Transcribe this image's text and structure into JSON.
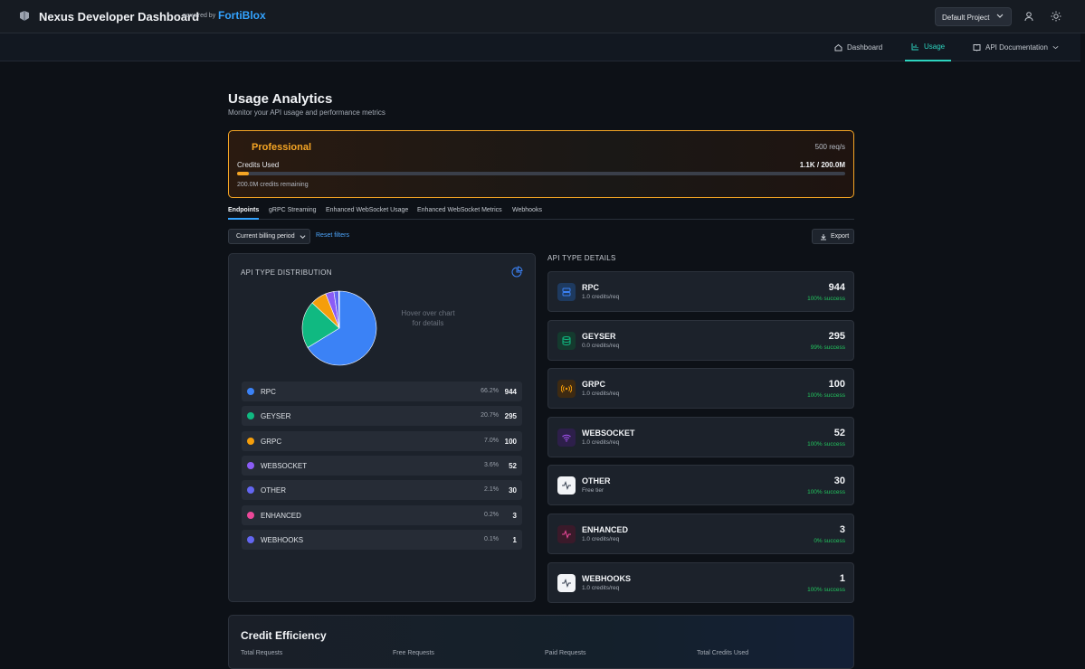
{
  "header": {
    "app_title": "Nexus Developer Dashboard",
    "powered_by": "powered by",
    "brand": "FortiBlox",
    "project": "Default Project"
  },
  "nav": {
    "dashboard": "Dashboard",
    "usage": "Usage",
    "api_docs": "API Documentation"
  },
  "page": {
    "title": "Usage Analytics",
    "subtitle": "Monitor your API usage and performance metrics"
  },
  "plan": {
    "name": "Professional",
    "rate": "500 req/s",
    "credits_label": "Credits Used",
    "credits_value": "1.1K / 200.0M",
    "remaining": "200.0M credits remaining",
    "used_fraction": 0.02
  },
  "tabs": [
    "Endpoints",
    "gRPC Streaming",
    "Enhanced WebSocket Usage",
    "Enhanced WebSocket Metrics",
    "Webhooks"
  ],
  "filters": {
    "period": "Current billing period",
    "reset": "Reset filters",
    "export": "Export"
  },
  "distribution": {
    "title": "API TYPE DISTRIBUTION",
    "hint": "Hover over chart for details",
    "items": [
      {
        "name": "RPC",
        "pct": "66.2%",
        "count": "944",
        "color": "#3b82f6",
        "value": 944
      },
      {
        "name": "GEYSER",
        "pct": "20.7%",
        "count": "295",
        "color": "#10b981",
        "value": 295
      },
      {
        "name": "GRPC",
        "pct": "7.0%",
        "count": "100",
        "color": "#f59e0b",
        "value": 100
      },
      {
        "name": "WEBSOCKET",
        "pct": "3.6%",
        "count": "52",
        "color": "#8b5cf6",
        "value": 52
      },
      {
        "name": "OTHER",
        "pct": "2.1%",
        "count": "30",
        "color": "#6366f1",
        "value": 30
      },
      {
        "name": "ENHANCED",
        "pct": "0.2%",
        "count": "3",
        "color": "#ec4899",
        "value": 3
      },
      {
        "name": "WEBHOOKS",
        "pct": "0.1%",
        "count": "1",
        "color": "#6366f1",
        "value": 1
      }
    ]
  },
  "details": {
    "title": "API TYPE DETAILS",
    "items": [
      {
        "name": "RPC",
        "sub": "1.0 credits/req",
        "count": "944",
        "success": "100% success",
        "icon": "server-icon",
        "bg": "#1e3a5f",
        "fg": "#3b82f6"
      },
      {
        "name": "GEYSER",
        "sub": "0.0 credits/req",
        "count": "295",
        "success": "99% success",
        "icon": "database-icon",
        "bg": "#143a2e",
        "fg": "#10b981"
      },
      {
        "name": "GRPC",
        "sub": "1.0 credits/req",
        "count": "100",
        "success": "100% success",
        "icon": "broadcast-icon",
        "bg": "#3d2a12",
        "fg": "#f59e0b"
      },
      {
        "name": "WEBSOCKET",
        "sub": "1.0 credits/req",
        "count": "52",
        "success": "100% success",
        "icon": "wifi-icon",
        "bg": "#2d1f4a",
        "fg": "#a855f7"
      },
      {
        "name": "OTHER",
        "sub": "Free tier",
        "count": "30",
        "success": "100% success",
        "icon": "activity-icon",
        "bg": "#f2f4f7",
        "fg": "#374151"
      },
      {
        "name": "ENHANCED",
        "sub": "1.0 credits/req",
        "count": "3",
        "success": "0% success",
        "icon": "activity-icon",
        "bg": "#3a1a2a",
        "fg": "#ec4899"
      },
      {
        "name": "WEBHOOKS",
        "sub": "1.0 credits/req",
        "count": "1",
        "success": "100% success",
        "icon": "activity-icon",
        "bg": "#f2f4f7",
        "fg": "#374151"
      }
    ]
  },
  "credit_efficiency": {
    "title": "Credit Efficiency",
    "columns": [
      "Total Requests",
      "Free Requests",
      "Paid Requests",
      "Total Credits Used"
    ]
  }
}
